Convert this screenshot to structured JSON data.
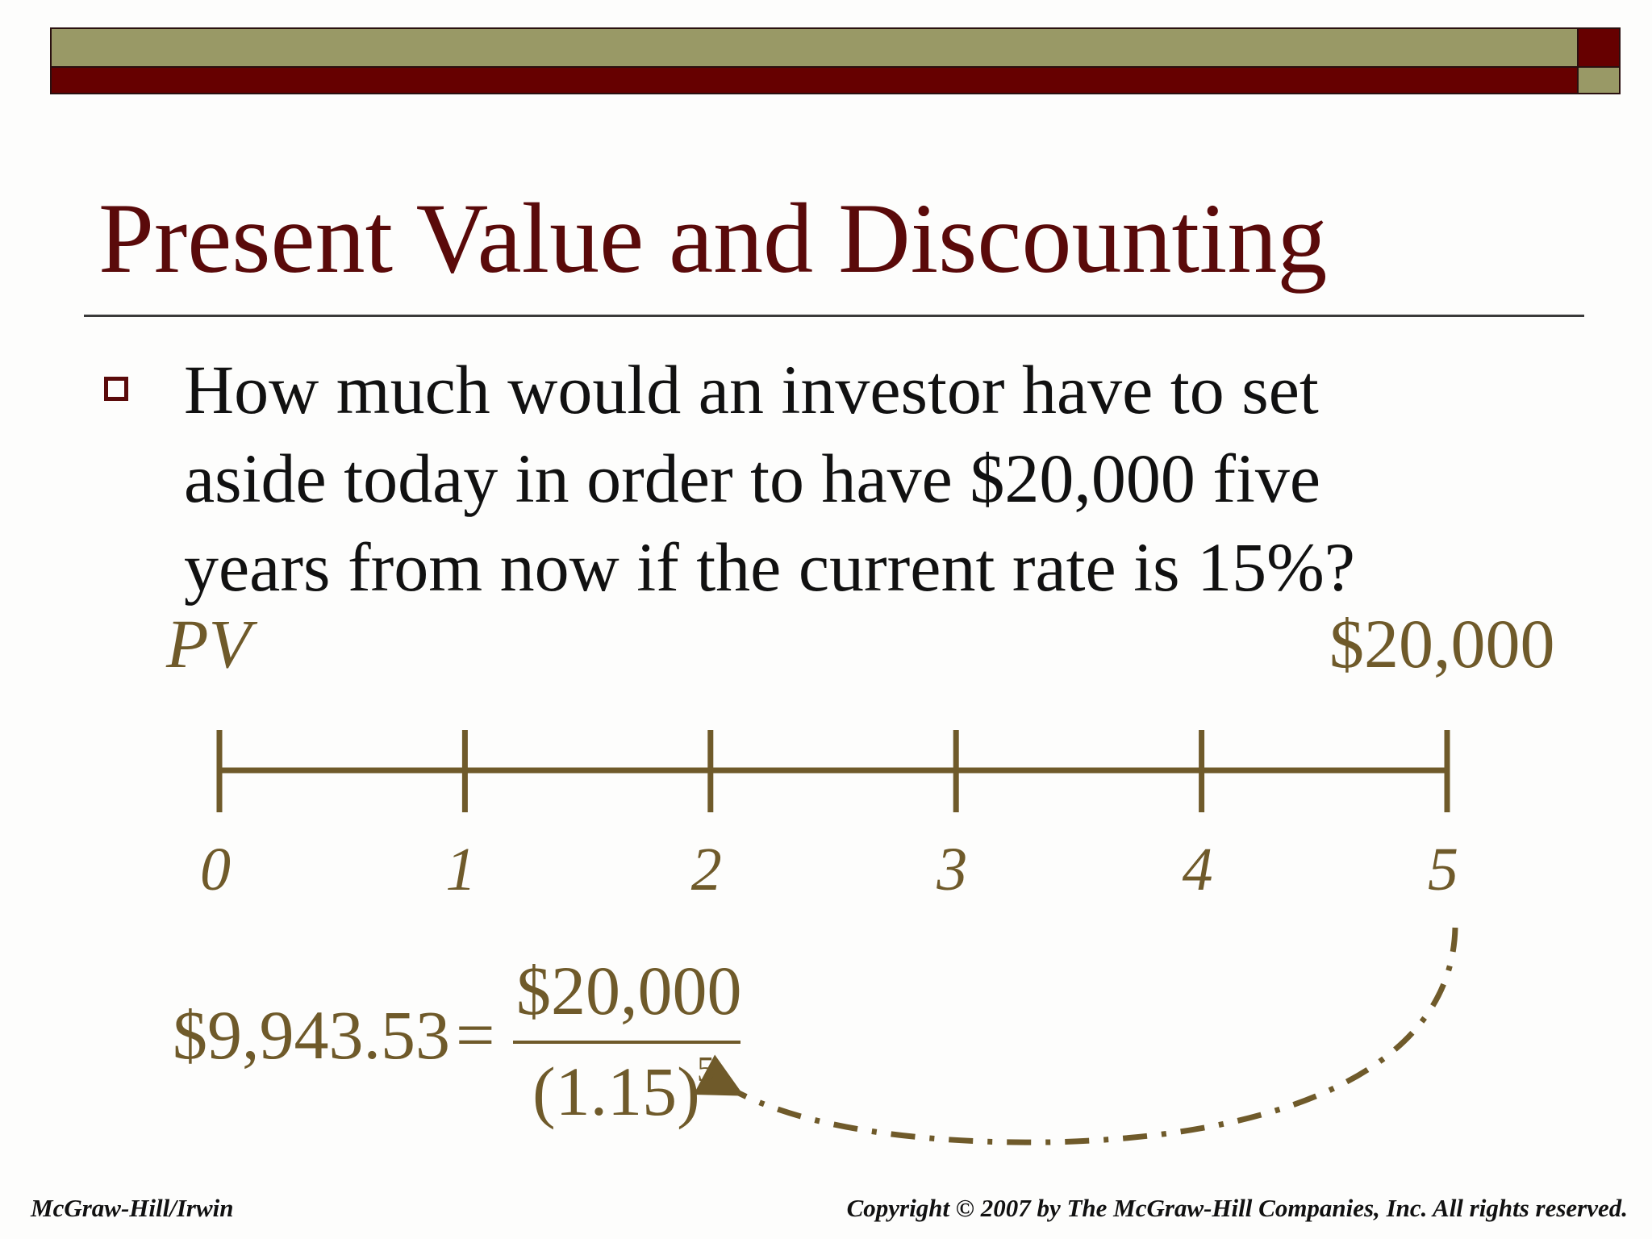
{
  "slide": {
    "title": "Present Value and Discounting",
    "question": "How much would an investor have to set aside today in order to have $20,000 five years from now if the current rate is 15%?"
  },
  "timeline": {
    "start_label": "PV",
    "end_label": "$20,000",
    "periods": [
      "0",
      "1",
      "2",
      "3",
      "4",
      "5"
    ]
  },
  "formula": {
    "result": "$9,943.53",
    "equals": "=",
    "numerator": "$20,000",
    "denominator": "(1.15)",
    "exponent": "5"
  },
  "footer": {
    "left": "McGraw-Hill/Irwin",
    "right": "Copyright © 2007 by The McGraw-Hill Companies, Inc. All rights reserved."
  },
  "colors": {
    "title": "#5a0a0a",
    "accent_olive": "#999966",
    "accent_red": "#660000",
    "timeline": "#6f5a2a"
  }
}
